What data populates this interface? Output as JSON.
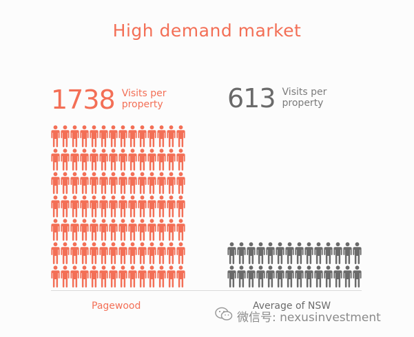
{
  "title": "High demand market",
  "colors": {
    "accent": "#f36f56",
    "muted": "#6a6a6a"
  },
  "chart_data": {
    "type": "bar",
    "categories": [
      "Pagewood",
      "Average of NSW"
    ],
    "values": [
      1738,
      613
    ],
    "value_labels": [
      "Visits per property",
      "Visits per property"
    ],
    "icon": "person-icon"
  },
  "stats": [
    {
      "number": "1738",
      "label": "Visits per property"
    },
    {
      "number": "613",
      "label": "Visits per property"
    }
  ],
  "watermark": {
    "text": "微信号: nexusinvestment",
    "icon": "wechat-icon"
  }
}
